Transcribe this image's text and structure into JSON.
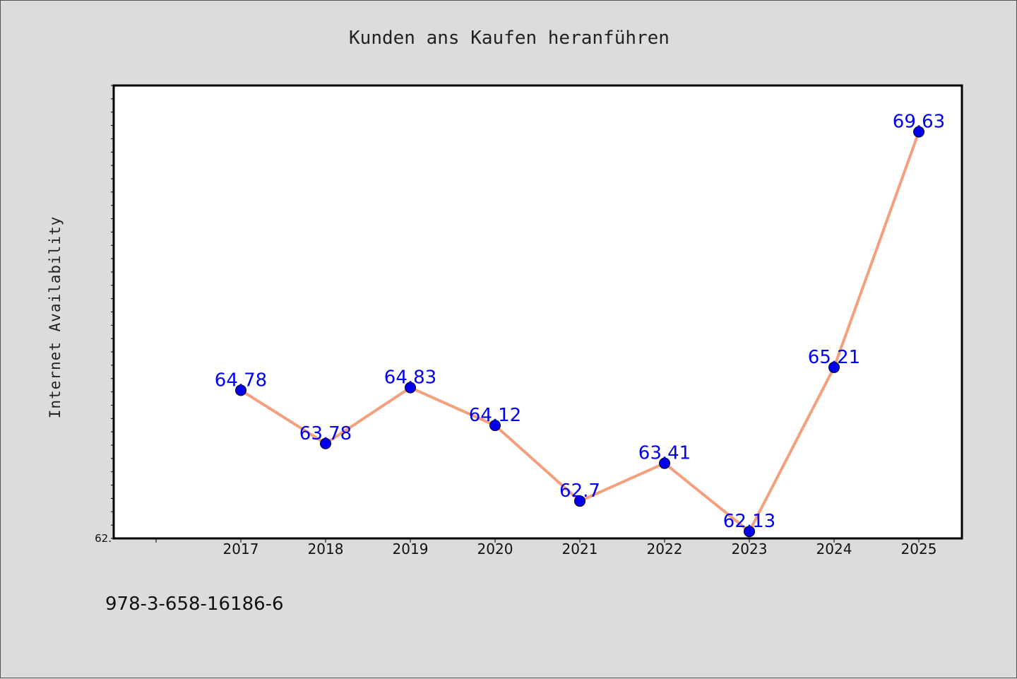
{
  "chart_data": {
    "type": "line",
    "title": "Kunden ans Kaufen heranführen",
    "xlabel": "",
    "ylabel": "Internet Availability",
    "categories": [
      "2017",
      "2018",
      "2019",
      "2020",
      "2021",
      "2022",
      "2023",
      "2024",
      "2025"
    ],
    "series": [
      {
        "values": [
          64.78,
          63.78,
          64.83,
          64.12,
          62.7,
          63.41,
          62.13,
          65.21,
          69.63
        ]
      }
    ],
    "data_labels": [
      "64.78",
      "63.78",
      "64.83",
      "64.12",
      "62.7",
      "63.41",
      "62.13",
      "65.21",
      "69.63"
    ],
    "y_tick_labels": [
      "62."
    ],
    "ylim": [
      62.0,
      70.5
    ],
    "grid": false,
    "legend": "none",
    "colors": {
      "line": "#f4a07e",
      "marker": "#0000ee",
      "label": "#0000ee",
      "background": "#dcdcdc",
      "plot_background": "#ffffff"
    }
  },
  "footer": {
    "isbn": "978-3-658-16186-6"
  }
}
